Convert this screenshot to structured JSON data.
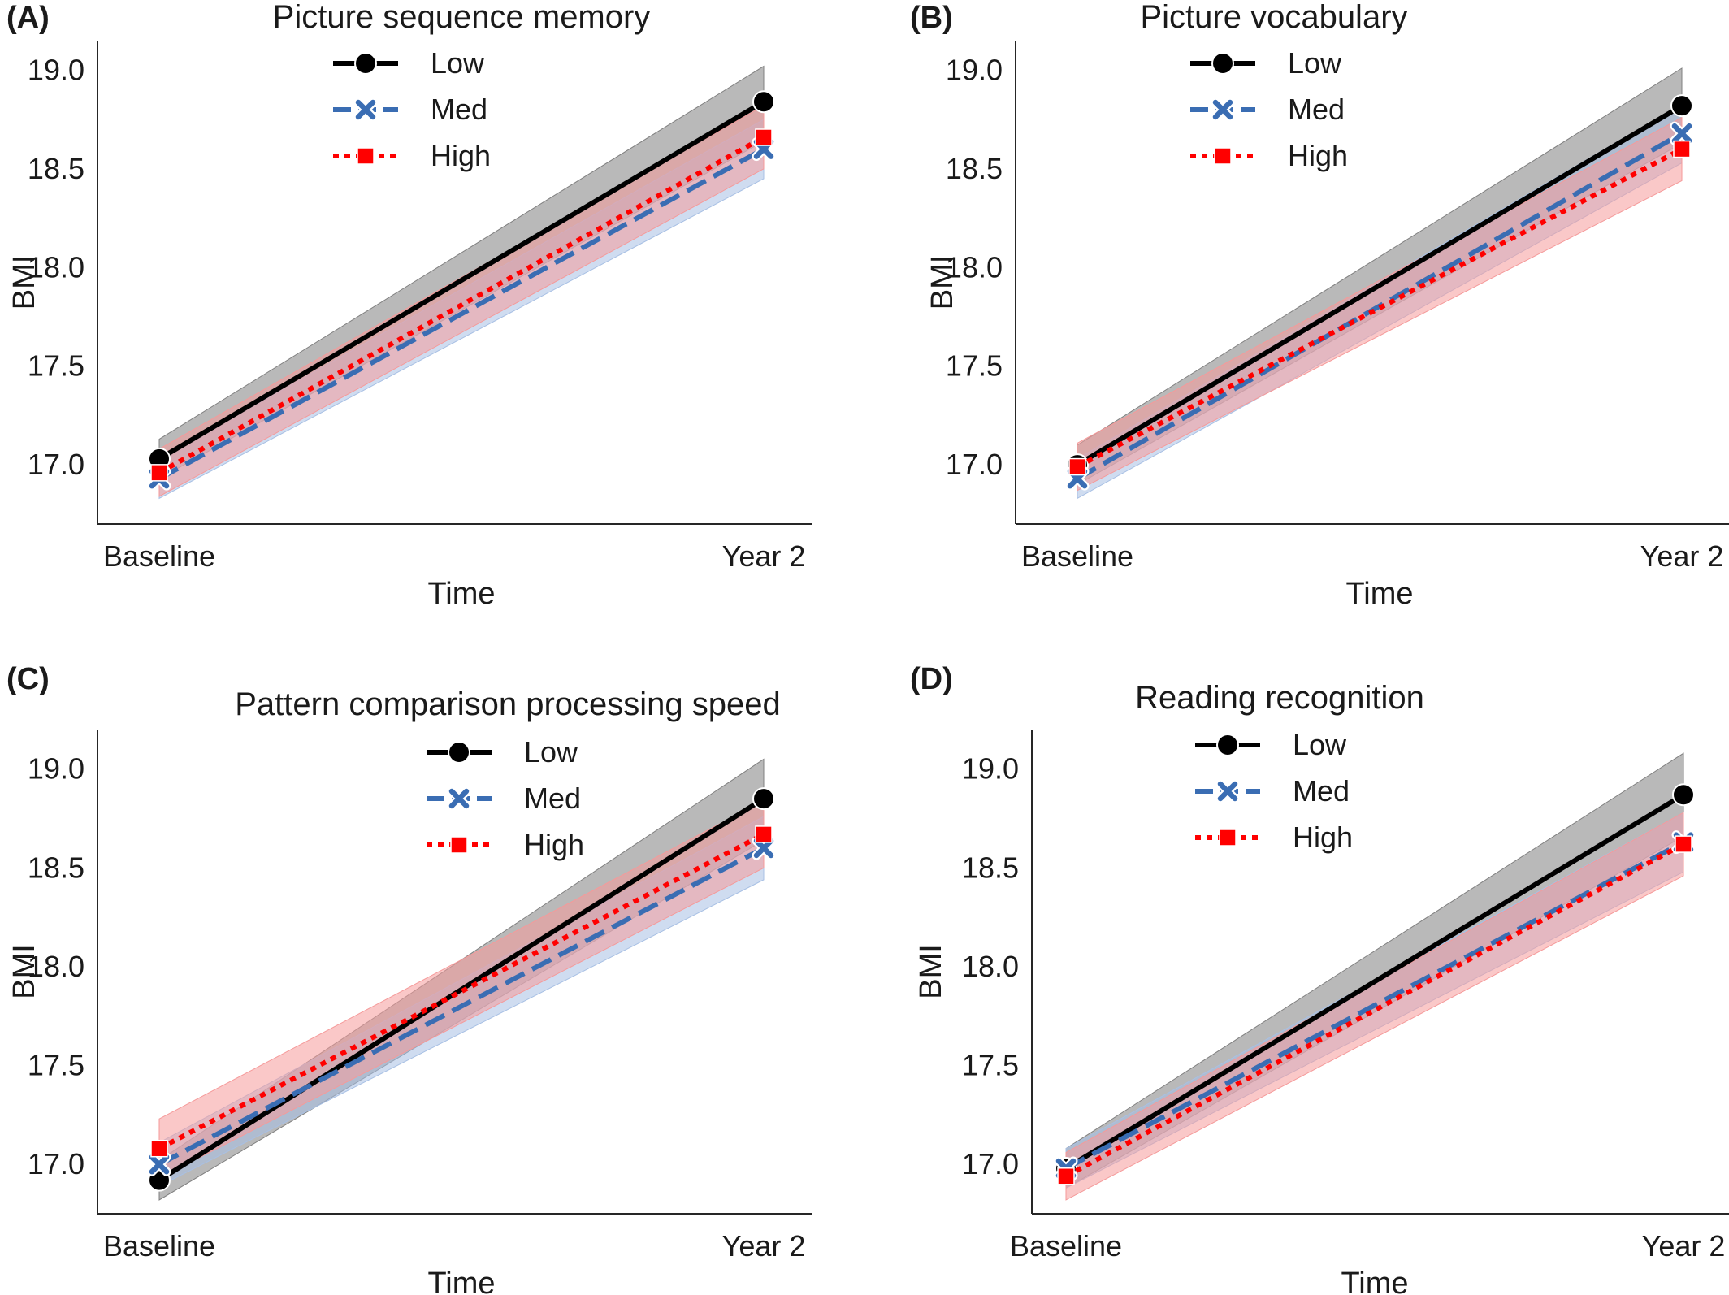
{
  "figure": {
    "y_label": "BMI",
    "x_label": "Time"
  },
  "colors": {
    "low": "#000000",
    "med": "#3a6db3",
    "high": "#ff0000",
    "low_band": "#808080",
    "med_band": "#a8c0e4",
    "high_band": "#f59a9a"
  },
  "chart_data": [
    {
      "type": "line",
      "letter": "(A)",
      "title": "Picture sequence memory",
      "xlabel": "Time",
      "ylabel": "BMI",
      "categories": [
        "Baseline",
        "Year 2"
      ],
      "ylim": [
        16.7,
        19.15
      ],
      "yticks": [
        "17.0",
        "17.5",
        "18.0",
        "18.5",
        "19.0"
      ],
      "legend": "top-center",
      "series": [
        {
          "name": "Low",
          "values": [
            17.03,
            18.84
          ],
          "lower": [
            16.93,
            18.64
          ],
          "upper": [
            17.13,
            19.02
          ]
        },
        {
          "name": "Med",
          "values": [
            16.93,
            18.6
          ],
          "lower": [
            16.83,
            18.45
          ],
          "upper": [
            17.03,
            18.75
          ]
        },
        {
          "name": "High",
          "values": [
            16.96,
            18.66
          ],
          "lower": [
            16.84,
            18.5
          ],
          "upper": [
            17.08,
            18.82
          ]
        }
      ]
    },
    {
      "type": "line",
      "letter": "(B)",
      "title": "Picture vocabulary",
      "xlabel": "Time",
      "ylabel": "BMI",
      "categories": [
        "Baseline",
        "Year 2"
      ],
      "ylim": [
        16.7,
        19.15
      ],
      "yticks": [
        "17.0",
        "17.5",
        "18.0",
        "18.5",
        "19.0"
      ],
      "legend": "top-center",
      "series": [
        {
          "name": "Low",
          "values": [
            17.0,
            18.82
          ],
          "lower": [
            16.9,
            18.63
          ],
          "upper": [
            17.1,
            19.01
          ]
        },
        {
          "name": "Med",
          "values": [
            16.93,
            18.68
          ],
          "lower": [
            16.83,
            18.53
          ],
          "upper": [
            17.03,
            18.83
          ]
        },
        {
          "name": "High",
          "values": [
            16.99,
            18.6
          ],
          "lower": [
            16.87,
            18.44
          ],
          "upper": [
            17.11,
            18.76
          ]
        }
      ]
    },
    {
      "type": "line",
      "letter": "(C)",
      "title": "Pattern comparison processing speed",
      "xlabel": "Time",
      "ylabel": "BMI",
      "categories": [
        "Baseline",
        "Year 2"
      ],
      "ylim": [
        16.75,
        19.2
      ],
      "yticks": [
        "17.0",
        "17.5",
        "18.0",
        "18.5",
        "19.0"
      ],
      "legend": "top-center",
      "series": [
        {
          "name": "Low",
          "values": [
            16.92,
            18.85
          ],
          "lower": [
            16.82,
            18.64
          ],
          "upper": [
            17.02,
            19.05
          ]
        },
        {
          "name": "Med",
          "values": [
            17.0,
            18.6
          ],
          "lower": [
            16.89,
            18.44
          ],
          "upper": [
            17.11,
            18.76
          ]
        },
        {
          "name": "High",
          "values": [
            17.08,
            18.67
          ],
          "lower": [
            16.93,
            18.5
          ],
          "upper": [
            17.23,
            18.84
          ]
        }
      ]
    },
    {
      "type": "line",
      "letter": "(D)",
      "title": "Reading recognition",
      "xlabel": "Time",
      "ylabel": "BMI",
      "categories": [
        "Baseline",
        "Year 2"
      ],
      "ylim": [
        16.75,
        19.2
      ],
      "yticks": [
        "17.0",
        "17.5",
        "18.0",
        "18.5",
        "19.0"
      ],
      "legend": "top-center",
      "series": [
        {
          "name": "Low",
          "values": [
            16.98,
            18.87
          ],
          "lower": [
            16.88,
            18.66
          ],
          "upper": [
            17.08,
            19.08
          ]
        },
        {
          "name": "Med",
          "values": [
            16.98,
            18.63
          ],
          "lower": [
            16.88,
            18.48
          ],
          "upper": [
            17.08,
            18.78
          ]
        },
        {
          "name": "High",
          "values": [
            16.94,
            18.62
          ],
          "lower": [
            16.82,
            18.46
          ],
          "upper": [
            17.06,
            18.78
          ]
        }
      ]
    }
  ]
}
